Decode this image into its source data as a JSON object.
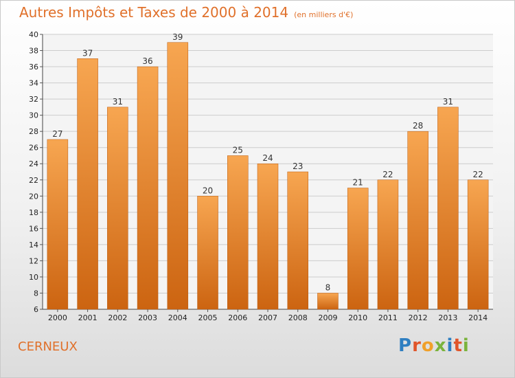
{
  "title": "Autres Impôts et Taxes de 2000 à 2014",
  "subtitle": "(en milliers d'€)",
  "town": "CERNEUX",
  "logo": {
    "text": "Proxiti",
    "letters": [
      {
        "ch": "P",
        "color": "#2f7fc1"
      },
      {
        "ch": "r",
        "color": "#e0552a"
      },
      {
        "ch": "o",
        "color": "#f0a02a"
      },
      {
        "ch": "x",
        "color": "#7ab33c"
      },
      {
        "ch": "i",
        "color": "#2f7fc1"
      },
      {
        "ch": "t",
        "color": "#e0552a"
      },
      {
        "ch": "i",
        "color": "#7ab33c"
      }
    ]
  },
  "colors": {
    "bar_light": "#f7a651",
    "bar_dark": "#cc6411",
    "accent": "#e0702a",
    "grid": "#cccccc"
  },
  "chart_data": {
    "type": "bar",
    "categories": [
      "2000",
      "2001",
      "2002",
      "2003",
      "2004",
      "2005",
      "2006",
      "2007",
      "2008",
      "2009",
      "2010",
      "2011",
      "2012",
      "2013",
      "2014"
    ],
    "values": [
      27,
      37,
      31,
      36,
      39,
      20,
      25,
      24,
      23,
      8,
      21,
      22,
      28,
      31,
      22
    ],
    "ylim": [
      6,
      40
    ],
    "yticks": [
      6,
      8,
      10,
      12,
      14,
      16,
      18,
      20,
      22,
      24,
      26,
      28,
      30,
      32,
      34,
      36,
      38,
      40
    ],
    "grid": true,
    "xlabel": "",
    "ylabel": ""
  }
}
